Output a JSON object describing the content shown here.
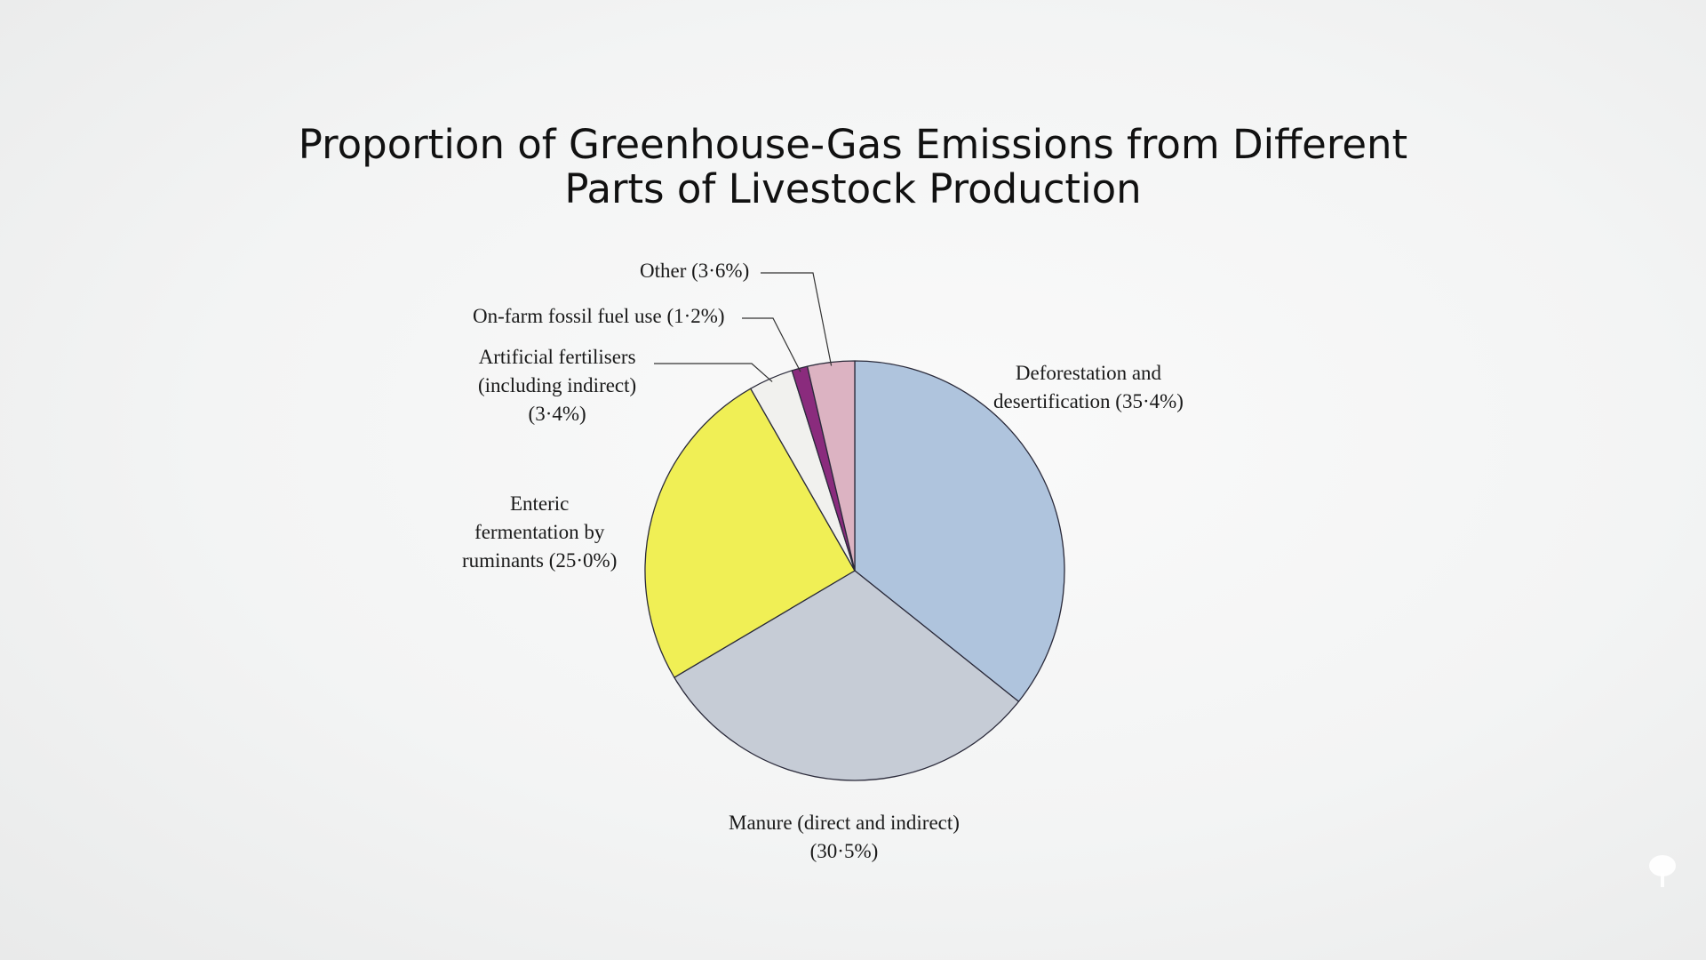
{
  "chart_data": {
    "type": "pie",
    "title_lines": [
      "Proportion of Greenhouse-Gas Emissions from Different",
      "Parts of Livestock Production"
    ],
    "start_angle_deg": 0,
    "direction": "clockwise",
    "slices": [
      {
        "label_lines": [
          "Deforestation and",
          "desertification (35·4%)"
        ],
        "value": 35.4,
        "color": "#afc4dd"
      },
      {
        "label_lines": [
          "Manure (direct and indirect)",
          "(30·5%)"
        ],
        "value": 30.5,
        "color": "#c6ccd6"
      },
      {
        "label_lines": [
          "Enteric",
          "fermentation by",
          "ruminants (25·0%)"
        ],
        "value": 25.0,
        "color": "#f0ef55"
      },
      {
        "label_lines": [
          "Artificial fertilisers",
          "(including indirect)",
          "(3·4%)"
        ],
        "value": 3.4,
        "color": "#f1f1ee"
      },
      {
        "label_lines": [
          "On-farm fossil fuel use (1·2%)"
        ],
        "value": 1.2,
        "color": "#8a2b7d"
      },
      {
        "label_lines": [
          "Other (3·6%)"
        ],
        "value": 3.6,
        "color": "#dcb3c2"
      }
    ],
    "legend": "none",
    "outline_color": "#2a2a3a"
  }
}
